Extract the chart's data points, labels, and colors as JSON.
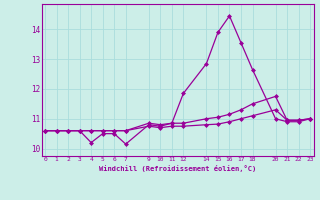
{
  "xlabel": "Windchill (Refroidissement éolien,°C)",
  "bg_color": "#cceee8",
  "line_color": "#990099",
  "grid_color": "#aadddd",
  "x_ticks": [
    0,
    1,
    2,
    3,
    4,
    5,
    6,
    7,
    9,
    10,
    11,
    12,
    14,
    15,
    16,
    17,
    18,
    20,
    21,
    22,
    23
  ],
  "xlim": [
    -0.3,
    23.3
  ],
  "ylim": [
    9.75,
    14.85
  ],
  "yticks": [
    10,
    11,
    12,
    13,
    14
  ],
  "line1_x": [
    0,
    1,
    2,
    3,
    4,
    5,
    6,
    7,
    9,
    10,
    11,
    12,
    14,
    15,
    16,
    17,
    18,
    20,
    21,
    22,
    23
  ],
  "line1_y": [
    10.6,
    10.6,
    10.6,
    10.6,
    10.2,
    10.5,
    10.5,
    10.15,
    10.8,
    10.75,
    10.85,
    11.85,
    12.85,
    13.9,
    14.45,
    13.55,
    12.65,
    11.0,
    10.9,
    10.9,
    11.0
  ],
  "line2_x": [
    0,
    1,
    2,
    3,
    4,
    5,
    6,
    7,
    9,
    10,
    11,
    12,
    14,
    15,
    16,
    17,
    18,
    20,
    21,
    22,
    23
  ],
  "line2_y": [
    10.6,
    10.6,
    10.6,
    10.6,
    10.6,
    10.6,
    10.6,
    10.6,
    10.85,
    10.8,
    10.85,
    10.85,
    11.0,
    11.05,
    11.15,
    11.3,
    11.5,
    11.75,
    10.95,
    10.95,
    11.0
  ],
  "line3_x": [
    0,
    1,
    2,
    3,
    4,
    5,
    6,
    7,
    9,
    10,
    11,
    12,
    14,
    15,
    16,
    17,
    18,
    20,
    21,
    22,
    23
  ],
  "line3_y": [
    10.6,
    10.6,
    10.6,
    10.6,
    10.6,
    10.6,
    10.6,
    10.6,
    10.75,
    10.7,
    10.75,
    10.75,
    10.8,
    10.82,
    10.9,
    11.0,
    11.1,
    11.3,
    10.95,
    10.95,
    11.0
  ]
}
